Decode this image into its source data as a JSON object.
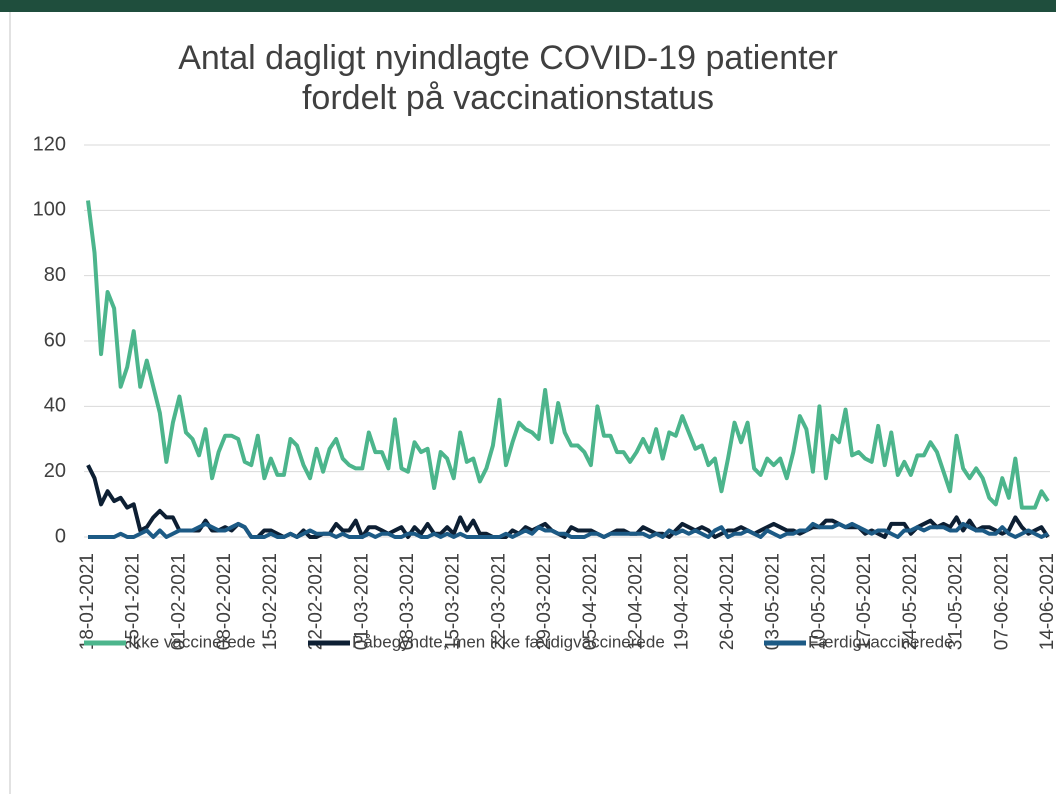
{
  "chart_data": {
    "type": "line",
    "title": [
      "Antal dagligt nyindlagte COVID-19 patienter",
      "fordelt på vaccinationstatus"
    ],
    "categories": [
      "18-01-2021",
      null,
      null,
      null,
      null,
      null,
      null,
      "25-01-2021",
      null,
      null,
      null,
      null,
      null,
      null,
      "01-02-2021",
      null,
      null,
      null,
      null,
      null,
      null,
      "08-02-2021",
      null,
      null,
      null,
      null,
      null,
      null,
      "15-02-2021",
      null,
      null,
      null,
      null,
      null,
      null,
      "22-02-2021",
      null,
      null,
      null,
      null,
      null,
      null,
      "01-03-2021",
      null,
      null,
      null,
      null,
      null,
      null,
      "08-03-2021",
      null,
      null,
      null,
      null,
      null,
      null,
      "15-03-2021",
      null,
      null,
      null,
      null,
      null,
      null,
      "22-03-2021",
      null,
      null,
      null,
      null,
      null,
      null,
      "29-03-2021",
      null,
      null,
      null,
      null,
      null,
      null,
      "05-04-2021",
      null,
      null,
      null,
      null,
      null,
      null,
      "12-04-2021",
      null,
      null,
      null,
      null,
      null,
      null,
      "19-04-2021",
      null,
      null,
      null,
      null,
      null,
      null,
      "26-04-2021",
      null,
      null,
      null,
      null,
      null,
      null,
      "03-05-2021",
      null,
      null,
      null,
      null,
      null,
      null,
      "10-05-2021",
      null,
      null,
      null,
      null,
      null,
      null,
      "17-05-2021",
      null,
      null,
      null,
      null,
      null,
      null,
      "24-05-2021",
      null,
      null,
      null,
      null,
      null,
      null,
      "31-05-2021",
      null,
      null,
      null,
      null,
      null,
      null,
      "07-06-2021",
      null,
      null,
      null,
      null,
      null,
      null,
      "14-06-2021"
    ],
    "series": [
      {
        "name": "Ikke vaccinerede",
        "color": "#4cb58c",
        "values": [
          103,
          87,
          56,
          75,
          70,
          46,
          52,
          63,
          46,
          54,
          46,
          38,
          23,
          35,
          43,
          32,
          30,
          25,
          33,
          18,
          26,
          31,
          31,
          30,
          23,
          22,
          31,
          18,
          24,
          19,
          19,
          30,
          28,
          22,
          18,
          27,
          20,
          27,
          30,
          24,
          22,
          21,
          21,
          32,
          26,
          26,
          21,
          36,
          21,
          20,
          29,
          26,
          27,
          15,
          26,
          24,
          18,
          32,
          23,
          24,
          17,
          21,
          28,
          42,
          22,
          29,
          35,
          33,
          32,
          30,
          45,
          29,
          41,
          32,
          28,
          28,
          26,
          22,
          40,
          31,
          31,
          26,
          26,
          23,
          26,
          30,
          26,
          33,
          24,
          32,
          31,
          37,
          32,
          27,
          28,
          22,
          24,
          14,
          24,
          35,
          29,
          35,
          21,
          19,
          24,
          22,
          24,
          18,
          26,
          37,
          33,
          20,
          40,
          18,
          31,
          29,
          39,
          25,
          26,
          24,
          23,
          34,
          22,
          32,
          19,
          23,
          19,
          25,
          25,
          29,
          26,
          20,
          14,
          31,
          21,
          18,
          21,
          18,
          12,
          10,
          18,
          12,
          24,
          9,
          9,
          9,
          14,
          11
        ]
      },
      {
        "name": "Påbegyndte, men ikke færdigvaccinerede",
        "color": "#0d1f33",
        "values": [
          22,
          18,
          10,
          14,
          11,
          12,
          9,
          10,
          2,
          3,
          6,
          8,
          6,
          6,
          2,
          2,
          2,
          2,
          5,
          2,
          2,
          3,
          2,
          4,
          3,
          0,
          0,
          2,
          2,
          1,
          0,
          1,
          0,
          2,
          0,
          0,
          1,
          1,
          4,
          2,
          2,
          5,
          0,
          3,
          3,
          2,
          1,
          2,
          3,
          0,
          3,
          1,
          4,
          1,
          1,
          3,
          1,
          6,
          2,
          5,
          1,
          1,
          0,
          0,
          0,
          2,
          1,
          3,
          2,
          3,
          4,
          2,
          1,
          0,
          3,
          2,
          2,
          2,
          1,
          0,
          1,
          2,
          2,
          1,
          1,
          3,
          2,
          1,
          1,
          0,
          2,
          4,
          3,
          2,
          3,
          2,
          0,
          1,
          2,
          2,
          3,
          2,
          1,
          2,
          3,
          4,
          3,
          2,
          2,
          1,
          2,
          3,
          3,
          5,
          5,
          4,
          3,
          3,
          3,
          1,
          2,
          1,
          0,
          4,
          4,
          4,
          1,
          3,
          4,
          5,
          3,
          4,
          3,
          6,
          2,
          5,
          2,
          3,
          3,
          2,
          1,
          2,
          6,
          3,
          1,
          2,
          3,
          0
        ]
      },
      {
        "name": "Færdigvaccinerede",
        "color": "#1c5a85",
        "values": [
          0,
          0,
          0,
          0,
          0,
          1,
          0,
          0,
          1,
          2,
          0,
          2,
          0,
          1,
          2,
          2,
          2,
          3,
          4,
          3,
          2,
          2,
          3,
          4,
          3,
          0,
          0,
          0,
          1,
          0,
          0,
          1,
          0,
          1,
          2,
          1,
          1,
          1,
          0,
          1,
          0,
          0,
          0,
          1,
          0,
          1,
          1,
          0,
          0,
          1,
          1,
          0,
          0,
          1,
          0,
          1,
          0,
          1,
          0,
          0,
          0,
          0,
          0,
          0,
          1,
          0,
          1,
          2,
          1,
          3,
          2,
          2,
          1,
          1,
          0,
          0,
          0,
          1,
          1,
          0,
          1,
          1,
          1,
          1,
          1,
          1,
          0,
          1,
          0,
          2,
          1,
          2,
          1,
          2,
          1,
          0,
          2,
          3,
          0,
          1,
          1,
          2,
          1,
          0,
          2,
          1,
          0,
          1,
          1,
          2,
          2,
          4,
          3,
          3,
          3,
          4,
          3,
          4,
          3,
          2,
          1,
          2,
          2,
          1,
          0,
          2,
          2,
          3,
          2,
          3,
          3,
          3,
          2,
          2,
          4,
          3,
          2,
          2,
          1,
          1,
          3,
          1,
          0,
          1,
          2,
          1,
          0,
          1
        ]
      }
    ],
    "ylim": [
      0,
      120
    ],
    "yticks": [
      0,
      20,
      40,
      60,
      80,
      100,
      120
    ],
    "grid": true,
    "legend": "bottom"
  }
}
